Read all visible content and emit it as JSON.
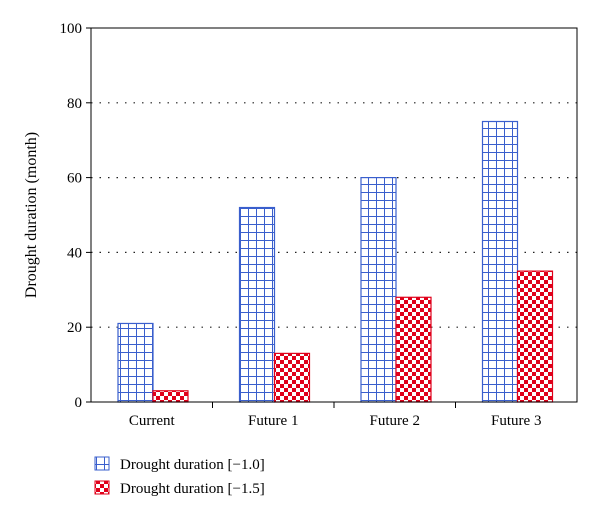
{
  "chart_data": {
    "type": "bar",
    "title": "",
    "xlabel": "",
    "ylabel": "Drought duration (month)",
    "categories": [
      "Current",
      "Future 1",
      "Future 2",
      "Future 3"
    ],
    "series": [
      {
        "name": "Drought duration [−1.0]",
        "values": [
          21,
          52,
          60,
          75
        ],
        "color": "#3a5fcd",
        "pattern": "grid"
      },
      {
        "name": "Drought duration [−1.5]",
        "values": [
          3,
          13,
          28,
          35
        ],
        "color": "#e0001a",
        "pattern": "checker"
      }
    ],
    "ylim": [
      0,
      100
    ],
    "yticks": [
      0,
      20,
      40,
      60,
      80,
      100
    ],
    "grid": "dotted horizontal",
    "legend_position": "bottom-left"
  }
}
